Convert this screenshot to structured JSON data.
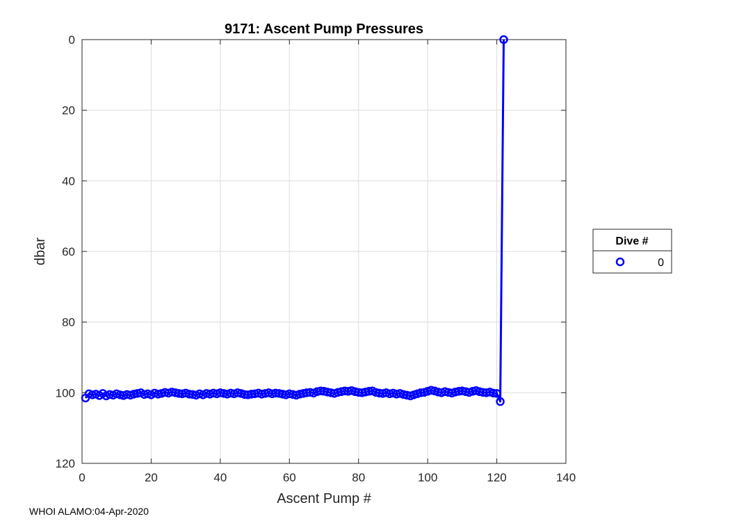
{
  "chart_data": {
    "type": "line",
    "title": "9171: Ascent Pump Pressures",
    "xlabel": "Ascent Pump #",
    "ylabel": "dbar",
    "xlim": [
      0,
      140
    ],
    "ylim": [
      0,
      120
    ],
    "y_reversed": true,
    "x_ticks": [
      0,
      20,
      40,
      60,
      80,
      100,
      120,
      140
    ],
    "y_ticks": [
      0,
      20,
      40,
      60,
      80,
      100,
      120
    ],
    "grid": true,
    "legend": {
      "title": "Dive #",
      "placement": "right"
    },
    "series": [
      {
        "name": "0",
        "color": "#0000ff",
        "marker": "circle",
        "x": [
          1,
          2,
          3,
          4,
          5,
          6,
          7,
          8,
          9,
          10,
          11,
          12,
          13,
          14,
          15,
          16,
          17,
          18,
          19,
          20,
          21,
          22,
          23,
          24,
          25,
          26,
          27,
          28,
          29,
          30,
          31,
          32,
          33,
          34,
          35,
          36,
          37,
          38,
          39,
          40,
          41,
          42,
          43,
          44,
          45,
          46,
          47,
          48,
          49,
          50,
          51,
          52,
          53,
          54,
          55,
          56,
          57,
          58,
          59,
          60,
          61,
          62,
          63,
          64,
          65,
          66,
          67,
          68,
          69,
          70,
          71,
          72,
          73,
          74,
          75,
          76,
          77,
          78,
          79,
          80,
          81,
          82,
          83,
          84,
          85,
          86,
          87,
          88,
          89,
          90,
          91,
          92,
          93,
          94,
          95,
          96,
          97,
          98,
          99,
          100,
          101,
          102,
          103,
          104,
          105,
          106,
          107,
          108,
          109,
          110,
          111,
          112,
          113,
          114,
          115,
          116,
          117,
          118,
          119,
          120,
          121,
          122
        ],
        "y": [
          101.5,
          100.3,
          100.6,
          100.4,
          100.8,
          100.2,
          100.9,
          100.5,
          100.7,
          100.3,
          100.6,
          100.8,
          100.5,
          100.7,
          100.4,
          100.2,
          100.0,
          100.5,
          100.3,
          100.6,
          100.1,
          100.4,
          100.2,
          99.9,
          100.1,
          99.8,
          100.0,
          100.2,
          100.3,
          100.1,
          100.4,
          100.5,
          100.7,
          100.3,
          100.6,
          100.2,
          100.4,
          100.1,
          100.3,
          100.0,
          100.2,
          100.4,
          100.1,
          100.3,
          100.0,
          100.2,
          100.5,
          100.6,
          100.4,
          100.3,
          100.1,
          100.4,
          100.2,
          100.0,
          100.3,
          100.1,
          100.2,
          100.4,
          100.6,
          100.3,
          100.5,
          100.7,
          100.4,
          100.2,
          100.0,
          99.9,
          100.1,
          99.7,
          99.5,
          99.6,
          99.8,
          100.0,
          100.2,
          99.9,
          99.7,
          99.5,
          99.6,
          99.4,
          99.7,
          99.9,
          100.0,
          99.8,
          99.6,
          99.5,
          99.9,
          100.1,
          100.2,
          100.0,
          100.3,
          100.1,
          100.4,
          100.2,
          100.5,
          100.7,
          100.9,
          100.6,
          100.3,
          100.0,
          99.9,
          99.6,
          99.3,
          99.5,
          99.8,
          100.0,
          99.7,
          99.9,
          100.1,
          99.8,
          99.6,
          99.5,
          99.7,
          99.9,
          99.6,
          99.4,
          99.7,
          99.9,
          100.0,
          99.8,
          100.1,
          100.2,
          102.5,
          0.0
        ]
      }
    ]
  },
  "footer": "WHOI ALAMO:04-Apr-2020"
}
